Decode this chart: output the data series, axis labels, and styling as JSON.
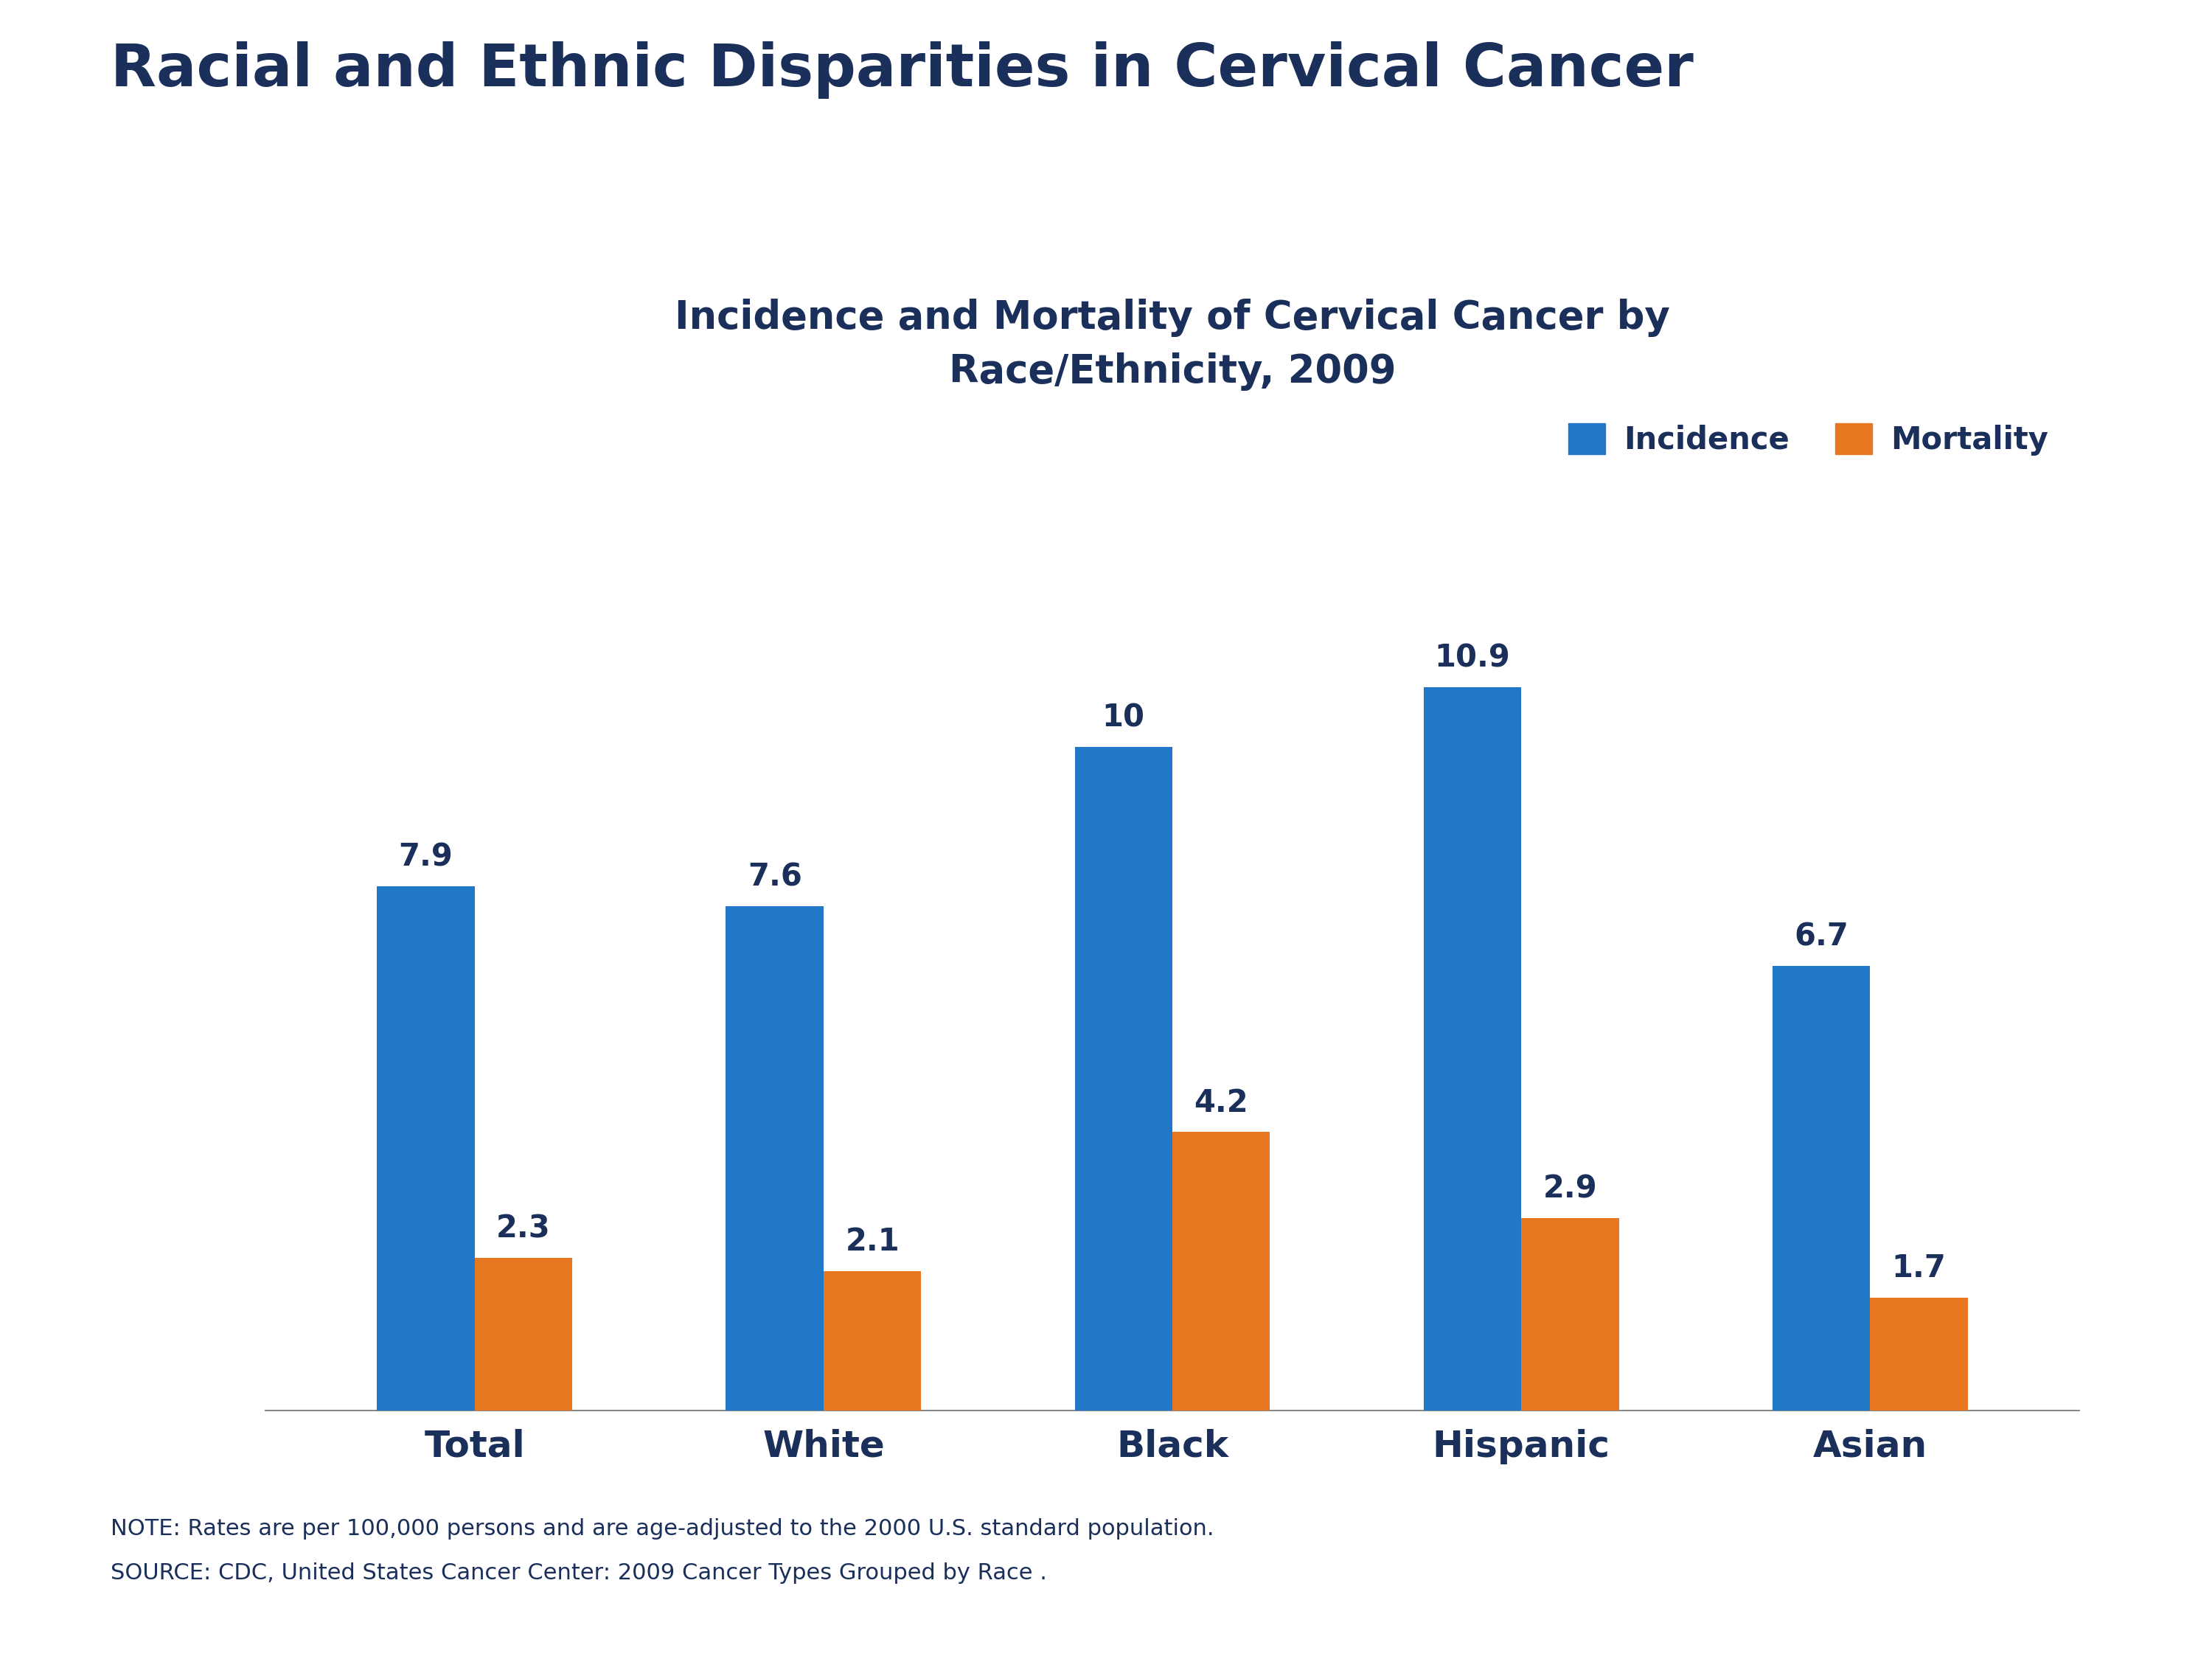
{
  "title": "Racial and Ethnic Disparities in Cervical Cancer",
  "subtitle": "Incidence and Mortality of Cervical Cancer by\nRace/Ethnicity, 2009",
  "categories": [
    "Total",
    "White",
    "Black",
    "Hispanic",
    "Asian"
  ],
  "incidence": [
    7.9,
    7.6,
    10.0,
    10.9,
    6.7
  ],
  "incidence_labels": [
    "7.9",
    "7.6",
    "10",
    "10.9",
    "6.7"
  ],
  "mortality": [
    2.3,
    2.1,
    4.2,
    2.9,
    1.7
  ],
  "mortality_labels": [
    "2.3",
    "2.1",
    "4.2",
    "2.9",
    "1.7"
  ],
  "incidence_color": "#2278C8",
  "mortality_color": "#E87722",
  "title_color": "#1A2F5A",
  "subtitle_color": "#1A2F5A",
  "label_color": "#1A2F5A",
  "bar_value_color": "#1A2F5A",
  "note_line1": "NOTE: Rates are per 100,000 persons and are age-adjusted to the 2000 U.S. standard population.",
  "note_line2": "SOURCE: CDC, United States Cancer Center: 2009 Cancer Types Grouped by Race .",
  "legend_incidence": "Incidence",
  "legend_mortality": "Mortality",
  "ylim": [
    0,
    13
  ],
  "bar_width": 0.28
}
